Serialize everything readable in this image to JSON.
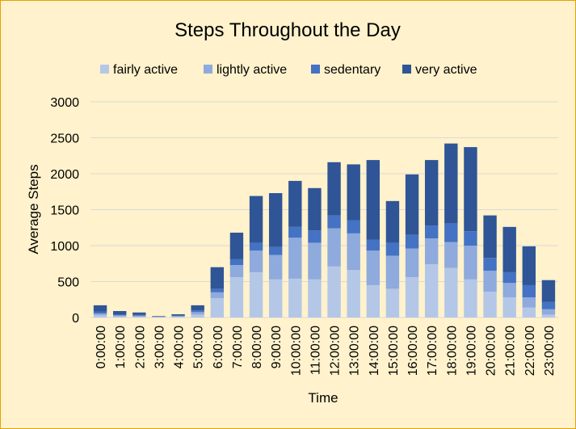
{
  "chart_data": {
    "type": "bar",
    "stacked": true,
    "title": "Steps Throughout the Day",
    "xlabel": "Time",
    "ylabel": "Average Steps",
    "ylim": [
      0,
      3000
    ],
    "yticks": [
      0,
      500,
      1000,
      1500,
      2000,
      2500,
      3000
    ],
    "grid": true,
    "legend_position": "top",
    "categories": [
      "0:00:00",
      "1:00:00",
      "2:00:00",
      "3:00:00",
      "4:00:00",
      "5:00:00",
      "6:00:00",
      "7:00:00",
      "8:00:00",
      "9:00:00",
      "10:00:00",
      "11:00:00",
      "12:00:00",
      "13:00:00",
      "14:00:00",
      "15:00:00",
      "16:00:00",
      "17:00:00",
      "18:00:00",
      "19:00:00",
      "20:00:00",
      "21:00:00",
      "22:00:00",
      "23:00:00"
    ],
    "series": [
      {
        "name": "fairly active",
        "color": "#b4c7e7",
        "values": [
          30,
          15,
          10,
          5,
          10,
          40,
          270,
          560,
          630,
          530,
          540,
          530,
          710,
          660,
          450,
          400,
          560,
          740,
          690,
          530,
          360,
          280,
          140,
          40
        ]
      },
      {
        "name": "lightly active",
        "color": "#8faadc",
        "values": [
          25,
          15,
          15,
          5,
          10,
          35,
          80,
          170,
          300,
          340,
          570,
          510,
          530,
          510,
          480,
          460,
          400,
          360,
          360,
          470,
          290,
          200,
          140,
          75
        ]
      },
      {
        "name": "sedentary",
        "color": "#4472c4",
        "values": [
          25,
          10,
          10,
          3,
          5,
          25,
          50,
          80,
          110,
          110,
          150,
          170,
          180,
          180,
          150,
          180,
          190,
          180,
          260,
          200,
          180,
          150,
          170,
          100
        ]
      },
      {
        "name": "very active",
        "color": "#2f5597",
        "values": [
          90,
          50,
          35,
          7,
          20,
          70,
          300,
          370,
          650,
          750,
          640,
          590,
          740,
          780,
          1110,
          580,
          840,
          910,
          1110,
          1170,
          590,
          630,
          540,
          305
        ]
      }
    ]
  }
}
